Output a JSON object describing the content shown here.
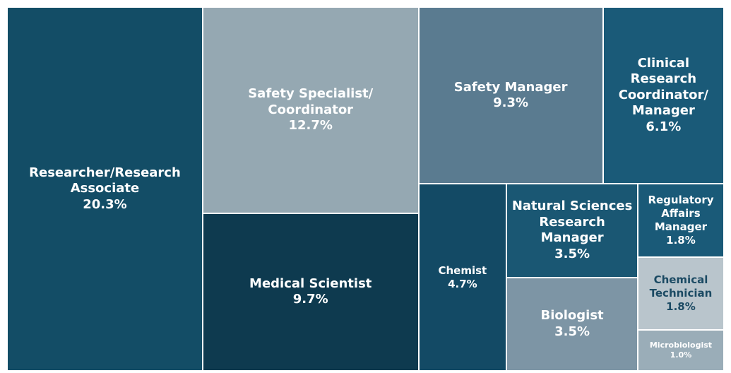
{
  "chart_data": {
    "type": "treemap",
    "categories": [
      "Researcher/Research Associate",
      "Safety Specialist/Coordinator",
      "Medical Scientist",
      "Safety Manager",
      "Clinical Research Coordinator/Manager",
      "Chemist",
      "Natural Sciences Research Manager",
      "Biologist",
      "Regulatory Affairs Manager",
      "Chemical Technician",
      "Microbiologist"
    ],
    "values": [
      20.3,
      12.7,
      9.7,
      9.3,
      6.1,
      4.7,
      3.5,
      3.5,
      1.8,
      1.8,
      1.0
    ],
    "value_labels": [
      "20.3%",
      "12.7%",
      "9.7%",
      "9.3%",
      "6.1%",
      "4.7%",
      "3.5%",
      "3.5%",
      "1.8%",
      "1.8%",
      "1.0%"
    ],
    "colors": [
      "#134d66",
      "#95a8b2",
      "#0e3a4f",
      "#5a7b90",
      "#1a5a78",
      "#134a65",
      "#1a5773",
      "#7d95a5",
      "#1a5a78",
      "#b9c5cc",
      "#9aadb8"
    ]
  }
}
